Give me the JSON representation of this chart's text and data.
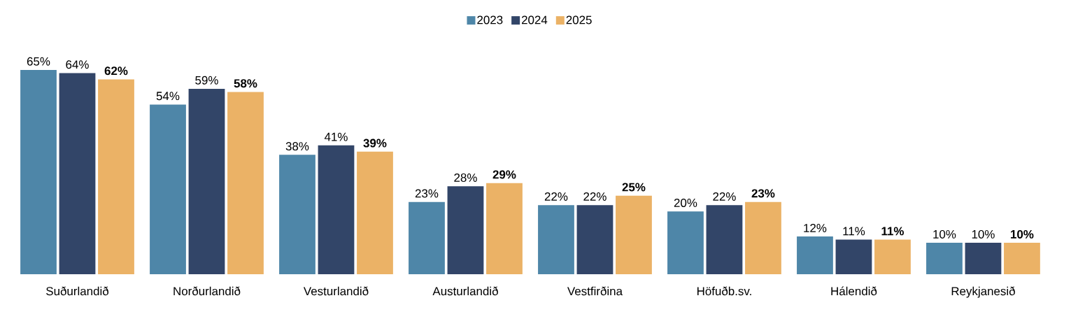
{
  "chart_data": {
    "type": "bar",
    "categories": [
      "Suðurlandið",
      "Norðurlandið",
      "Vesturlandið",
      "Austurlandið",
      "Vestfirðina",
      "Höfuðb.sv.",
      "Hálendið",
      "Reykjanesið"
    ],
    "series": [
      {
        "name": "2023",
        "color": "#4e86a8",
        "values": [
          65,
          54,
          38,
          23,
          22,
          20,
          12,
          10
        ],
        "value_labels": [
          "65%",
          "54%",
          "38%",
          "23%",
          "22%",
          "20%",
          "12%",
          "10%"
        ]
      },
      {
        "name": "2024",
        "color": "#324568",
        "values": [
          64,
          59,
          41,
          28,
          22,
          22,
          11,
          10
        ],
        "value_labels": [
          "64%",
          "59%",
          "41%",
          "28%",
          "22%",
          "22%",
          "11%",
          "10%"
        ]
      },
      {
        "name": "2025",
        "color": "#ebb266",
        "values": [
          62,
          58,
          39,
          29,
          25,
          23,
          11,
          10
        ],
        "value_labels": [
          "**62%**",
          "**58%**",
          "**39%**",
          "**29%**",
          "**25%**",
          "**23%**",
          "**11%**",
          "**10%**"
        ]
      }
    ],
    "legend": "top"
  }
}
